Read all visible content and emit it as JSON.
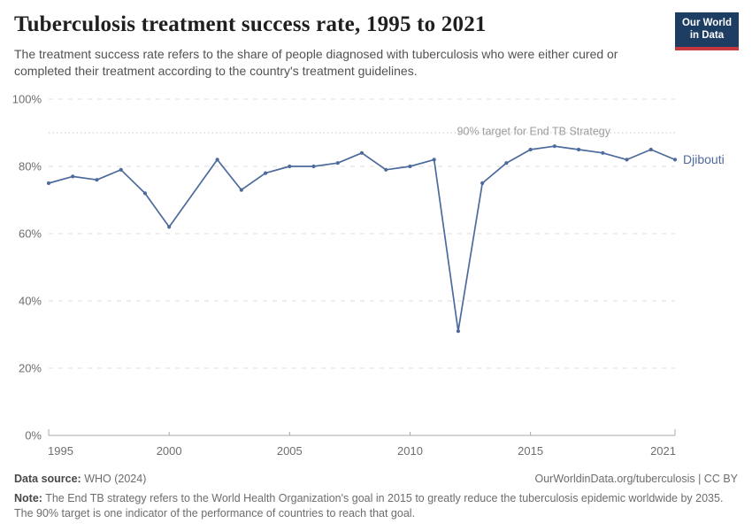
{
  "header": {
    "title": "Tuberculosis treatment success rate, 1995 to 2021",
    "subtitle": "The treatment success rate refers to the share of people diagnosed with tuberculosis who were either cured or completed their treatment according to the country's treatment guidelines.",
    "logo": {
      "line1": "Our World",
      "line2": "in Data"
    }
  },
  "chart_data": {
    "type": "line",
    "title": "Tuberculosis treatment success rate, 1995 to 2021",
    "unit": "%",
    "xlim": [
      1995,
      2021
    ],
    "ylim": [
      0,
      100
    ],
    "xticks": [
      1995,
      2000,
      2005,
      2010,
      2015,
      2021
    ],
    "yticks": [
      0,
      20,
      40,
      60,
      80,
      100
    ],
    "grid": true,
    "legend_position": "end-of-line",
    "target_line": {
      "value": 90,
      "label": "90% target for End TB Strategy"
    },
    "series": [
      {
        "name": "Djibouti",
        "years": [
          1995,
          1996,
          1997,
          1998,
          1999,
          2000,
          2001,
          2002,
          2003,
          2004,
          2005,
          2006,
          2007,
          2008,
          2009,
          2010,
          2011,
          2012,
          2013,
          2014,
          2015,
          2016,
          2017,
          2018,
          2019,
          2020,
          2021
        ],
        "values": [
          75,
          77,
          76,
          79,
          72,
          62,
          null,
          82,
          73,
          78,
          80,
          80,
          81,
          84,
          79,
          80,
          82,
          31,
          75,
          81,
          85,
          86,
          85,
          84,
          82,
          85,
          82
        ]
      }
    ],
    "colors": {
      "line": "#4c6a9c",
      "grid": "#dedede",
      "target_line": "#c8c8c8",
      "target_label": "#9e9e9e",
      "axis": "#a8a8a8",
      "tick_label": "#6e6e6e"
    }
  },
  "footer": {
    "source_label": "Data source:",
    "source_value": "WHO (2024)",
    "link": "OurWorldinData.org/tuberculosis | CC BY",
    "note_label": "Note:",
    "note_value": "The End TB strategy refers to the World Health Organization's goal in 2015 to greatly reduce the tuberculosis epidemic worldwide by 2035. The 90% target is one indicator of the performance of countries to reach that goal."
  },
  "brand_colors": {
    "navy": "#1d3d63",
    "red": "#c5383c"
  }
}
